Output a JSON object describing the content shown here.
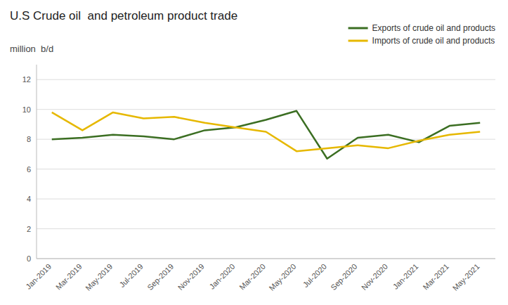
{
  "chart_data": {
    "type": "line",
    "title": "U.S Crude oil  and petroleum product trade",
    "y_label": "million  b/d",
    "categories": [
      "Jan-2019",
      "Mar-2019",
      "May-2019",
      "Jul-2019",
      "Sep-2019",
      "Nov-2019",
      "Jan-2020",
      "Mar-2020",
      "May-2020",
      "Jul-2020",
      "Sep-2020",
      "Nov-2020",
      "Jan-2021",
      "Mar-2021",
      "May-2021"
    ],
    "series": [
      {
        "name": "Exports of crude oil and products",
        "color": "#3b6e22",
        "values": [
          8.0,
          8.1,
          8.3,
          8.2,
          8.0,
          8.6,
          8.8,
          9.3,
          9.9,
          6.7,
          8.1,
          8.3,
          7.8,
          8.9,
          9.1
        ]
      },
      {
        "name": "Imports of crude oil and products",
        "color": "#e6b800",
        "values": [
          9.8,
          8.6,
          9.8,
          9.4,
          9.5,
          9.1,
          8.8,
          8.5,
          7.2,
          7.4,
          7.6,
          7.4,
          7.9,
          8.3,
          8.5
        ]
      }
    ],
    "ylim": [
      0,
      13
    ],
    "yticks": [
      0,
      2,
      4,
      6,
      8,
      10,
      12
    ],
    "grid": true,
    "legend": "upper right"
  }
}
